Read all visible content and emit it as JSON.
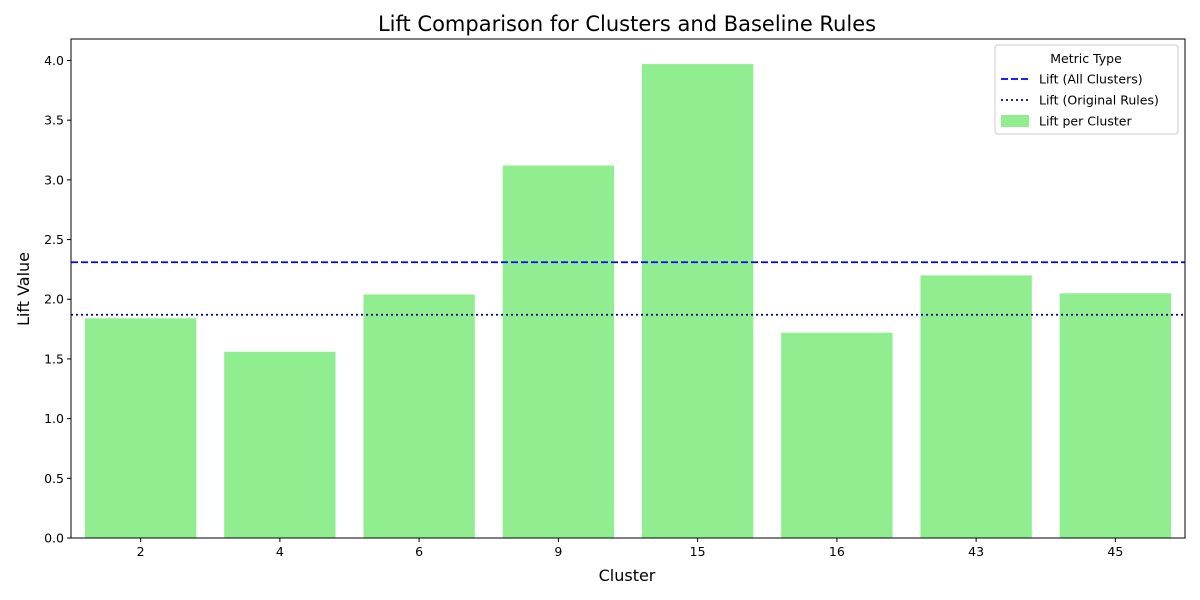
{
  "chart_data": {
    "type": "bar",
    "title": "Lift Comparison for Clusters and Baseline Rules",
    "xlabel": "Cluster",
    "ylabel": "Lift Value",
    "categories": [
      "2",
      "4",
      "6",
      "9",
      "15",
      "16",
      "43",
      "45"
    ],
    "series": [
      {
        "name": "Lift per Cluster",
        "values": [
          1.84,
          1.56,
          2.04,
          3.12,
          3.97,
          1.72,
          2.2,
          2.05
        ],
        "color": "#90ee90"
      }
    ],
    "reference_lines": [
      {
        "name": "Lift (All Clusters)",
        "value": 2.31,
        "style": "dashed",
        "color": "#0000ff"
      },
      {
        "name": "Lift (Original Rules)",
        "value": 1.87,
        "style": "dotted",
        "color": "#00008b"
      }
    ],
    "ylim": [
      0,
      4.18
    ],
    "yticks": [
      "0.0",
      "0.5",
      "1.0",
      "1.5",
      "2.0",
      "2.5",
      "3.0",
      "3.5",
      "4.0"
    ],
    "grid": false,
    "legend": {
      "title": "Metric Type",
      "placement": "top-right"
    }
  }
}
